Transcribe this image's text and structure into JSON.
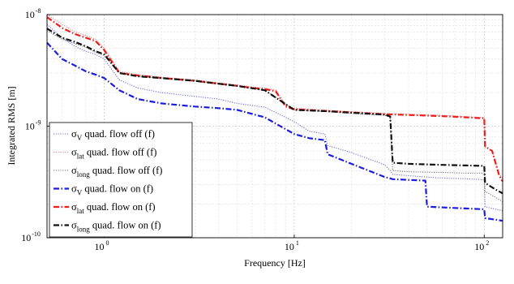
{
  "chart_data": {
    "type": "line",
    "xlabel": "Frequency [Hz]",
    "ylabel": "Integrated RMS [m]",
    "x_scale": "log",
    "y_scale": "log",
    "xlim": [
      0.5,
      125
    ],
    "ylim": [
      1e-10,
      1e-08
    ],
    "grid": true,
    "legend_position": "bottom-left",
    "x_ticks": [
      {
        "value": 1,
        "base": "10",
        "exp": "0"
      },
      {
        "value": 10,
        "base": "10",
        "exp": "1"
      },
      {
        "value": 100,
        "base": "10",
        "exp": "2"
      }
    ],
    "y_ticks": [
      {
        "value": 1e-10,
        "base": "10",
        "exp": "-10"
      },
      {
        "value": 1e-09,
        "base": "10",
        "exp": "-9"
      },
      {
        "value": 1e-08,
        "base": "10",
        "exp": "-8"
      }
    ],
    "series": [
      {
        "symbol": "σ",
        "subscript": "V",
        "label": " quad. flow off (f)",
        "color": "#7070d8",
        "style": "dotted",
        "x": [
          0.5,
          0.6,
          0.7,
          0.8,
          0.9,
          1.0,
          1.2,
          1.5,
          2,
          3,
          4,
          5,
          7,
          10,
          12,
          14.5,
          15,
          20,
          30,
          32,
          33,
          40,
          50,
          55,
          70,
          90,
          100,
          101,
          115,
          125
        ],
        "y": [
          8.2e-09,
          6.2e-09,
          5.2e-09,
          4.7e-09,
          4.4e-09,
          4e-09,
          2.6e-09,
          2.2e-09,
          2e-09,
          1.85e-09,
          1.75e-09,
          1.6e-09,
          1.48e-09,
          1.1e-09,
          9e-10,
          8.5e-10,
          6.7e-10,
          5.8e-10,
          4.5e-10,
          4e-10,
          3.7e-10,
          3.6e-10,
          3.5e-10,
          3.45e-10,
          3.4e-10,
          3.35e-10,
          3.3e-10,
          1.9e-10,
          1.8e-10,
          1.75e-10
        ]
      },
      {
        "symbol": "σ",
        "subscript": "lat",
        "label": " quad. flow off (f)",
        "color": "#f08080",
        "style": "dotted",
        "x": [
          0.5,
          0.6,
          0.7,
          0.8,
          0.9,
          1.0,
          1.2,
          1.5,
          2,
          3,
          4,
          5,
          6,
          7,
          8,
          9,
          10,
          20,
          30,
          40,
          60,
          80,
          95,
          100,
          101,
          110,
          120,
          125
        ],
        "y": [
          1e-08,
          8.2e-09,
          7e-09,
          6.5e-09,
          6e-09,
          5e-09,
          3.1e-09,
          2.9e-09,
          2.75e-09,
          2.6e-09,
          2.45e-09,
          2.35e-09,
          2.25e-09,
          2.2e-09,
          2.1e-09,
          1.55e-09,
          1.45e-09,
          1.35e-09,
          1.3e-09,
          1.28e-09,
          1.25e-09,
          1.22e-09,
          1.2e-09,
          1.2e-09,
          6.5e-10,
          6e-10,
          3.7e-10,
          3.4e-10
        ]
      },
      {
        "symbol": "σ",
        "subscript": "long",
        "label": " quad. flow off (f)",
        "color": "#707070",
        "style": "dotted",
        "x": [
          0.5,
          0.6,
          0.7,
          0.8,
          0.9,
          1.0,
          1.2,
          1.5,
          2,
          3,
          4,
          5,
          7,
          10,
          15,
          20,
          30,
          32,
          33,
          40,
          60,
          80,
          100,
          101,
          115,
          125
        ],
        "y": [
          7.2e-09,
          6e-09,
          5.5e-09,
          5.1e-09,
          4.6e-09,
          4.3e-09,
          3e-09,
          2.8e-09,
          2.7e-09,
          2.55e-09,
          2.4e-09,
          2.3e-09,
          2.1e-09,
          1.4e-09,
          1.35e-09,
          1.3e-09,
          1.25e-09,
          1.2e-09,
          4e-10,
          3.9e-10,
          3.85e-10,
          3.8e-10,
          3.8e-10,
          2.6e-10,
          2.3e-10,
          2.1e-10
        ]
      },
      {
        "symbol": "σ",
        "subscript": "V",
        "label": " quad. flow on (f)",
        "color": "#1c1cde",
        "style": "dashdot",
        "x": [
          0.5,
          0.6,
          0.7,
          0.8,
          0.9,
          1.0,
          1.2,
          1.5,
          2,
          3,
          4,
          5,
          7,
          10,
          12,
          14.5,
          15,
          20,
          30,
          32,
          33,
          40,
          49,
          50,
          70,
          100,
          101,
          115,
          125
        ],
        "y": [
          5.6e-09,
          4e-09,
          3.5e-09,
          3.1e-09,
          2.9e-09,
          2.7e-09,
          2.1e-09,
          1.75e-09,
          1.6e-09,
          1.5e-09,
          1.45e-09,
          1.4e-09,
          1.2e-09,
          8.5e-10,
          7.8e-10,
          7.5e-10,
          5.6e-10,
          4.6e-10,
          3.5e-10,
          3.4e-10,
          3.35e-10,
          3.3e-10,
          3.25e-10,
          1.9e-10,
          1.85e-10,
          1.8e-10,
          1.5e-10,
          1.45e-10,
          1.42e-10
        ]
      },
      {
        "symbol": "σ",
        "subscript": "lat",
        "label": " quad. flow on (f)",
        "color": "#ee1c1c",
        "style": "dashdot",
        "x": [
          0.5,
          0.6,
          0.7,
          0.8,
          0.9,
          1.0,
          1.2,
          1.5,
          2,
          3,
          4,
          5,
          6,
          7,
          8,
          9,
          10,
          20,
          30,
          40,
          60,
          80,
          95,
          100,
          101,
          110,
          120,
          125
        ],
        "y": [
          9.5e-09,
          7.6e-09,
          6.7e-09,
          6.2e-09,
          5.8e-09,
          4.8e-09,
          3e-09,
          2.85e-09,
          2.7e-09,
          2.55e-09,
          2.4e-09,
          2.3e-09,
          2.2e-09,
          2.15e-09,
          2.05e-09,
          1.5e-09,
          1.42e-09,
          1.33e-09,
          1.28e-09,
          1.26e-09,
          1.23e-09,
          1.2e-09,
          1.18e-09,
          1.18e-09,
          6.6e-10,
          6e-10,
          3.6e-10,
          3.2e-10
        ]
      },
      {
        "symbol": "σ",
        "subscript": "long",
        "label": " quad. flow on (f)",
        "color": "#111111",
        "style": "dashdot",
        "x": [
          0.5,
          0.6,
          0.7,
          0.8,
          0.9,
          1.0,
          1.2,
          1.5,
          2,
          3,
          4,
          5,
          7,
          10,
          15,
          20,
          30,
          32,
          33,
          40,
          60,
          80,
          100,
          101,
          115,
          125
        ],
        "y": [
          7.5e-09,
          6.2e-09,
          5.7e-09,
          5.2e-09,
          4.7e-09,
          4.4e-09,
          3e-09,
          2.8e-09,
          2.7e-09,
          2.55e-09,
          2.4e-09,
          2.3e-09,
          2.1e-09,
          1.4e-09,
          1.36e-09,
          1.32e-09,
          1.27e-09,
          1.22e-09,
          4.7e-10,
          4.6e-10,
          4.5e-10,
          4.45e-10,
          4.4e-10,
          3.1e-10,
          2.7e-10,
          2.5e-10
        ]
      }
    ]
  }
}
